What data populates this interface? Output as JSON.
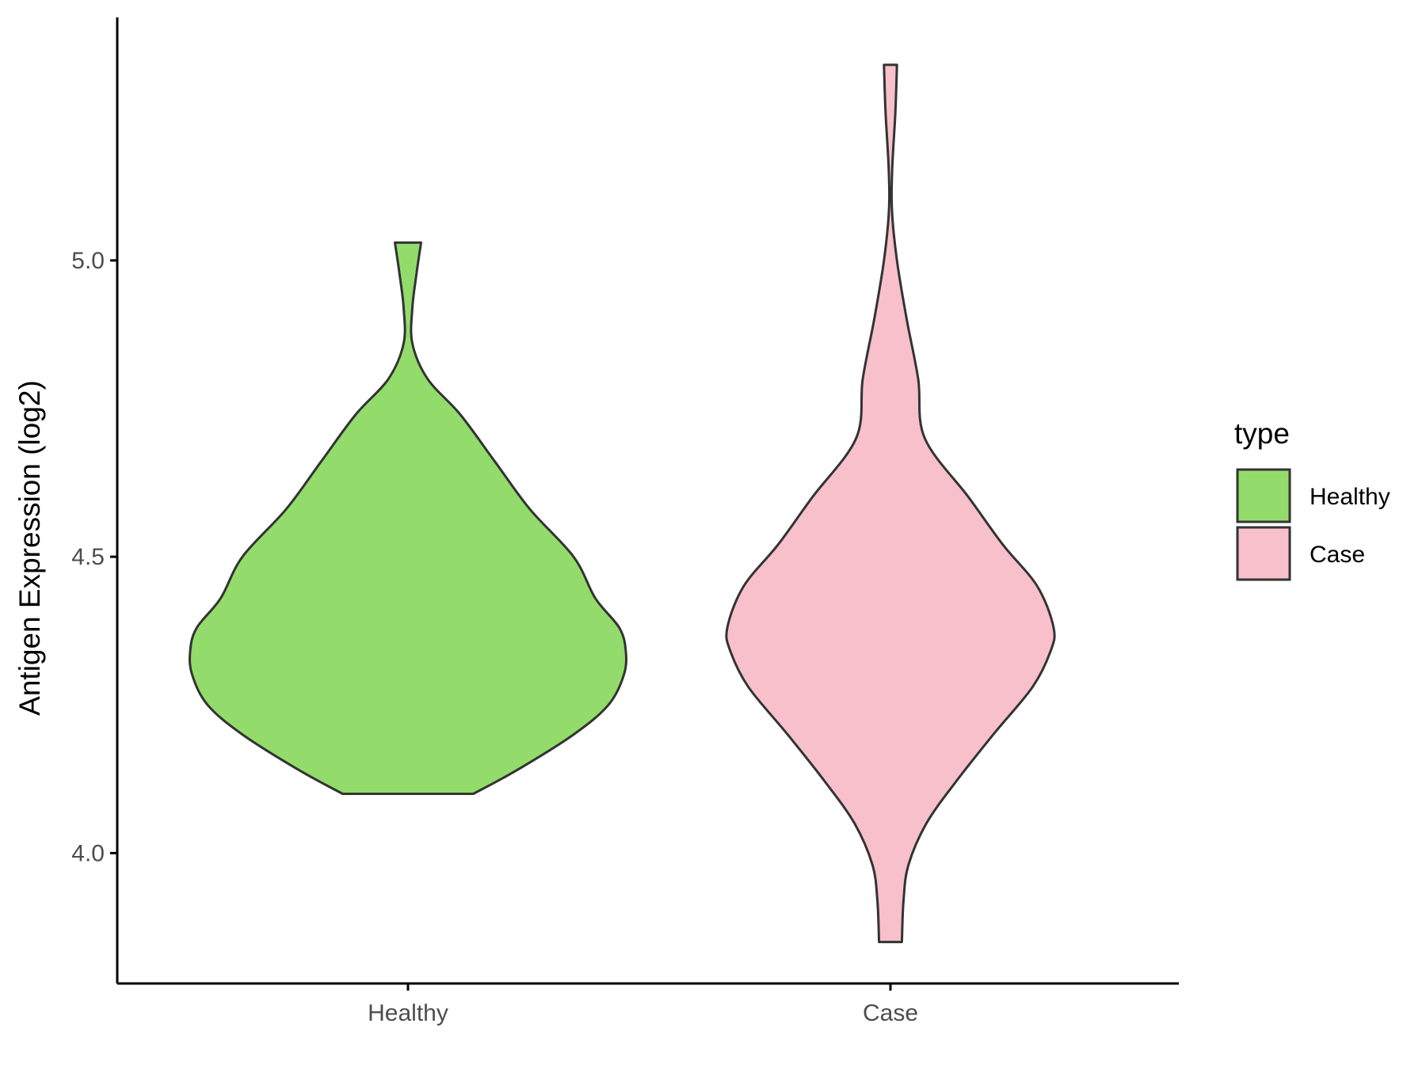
{
  "chart_data": {
    "type": "violin",
    "title": "",
    "xlabel": "",
    "ylabel": "Antigen Expression (log2)",
    "categories": [
      "Healthy",
      "Case"
    ],
    "ylim": [
      3.78,
      5.41
    ],
    "yticks": [
      4.0,
      4.5,
      5.0
    ],
    "ytick_labels": [
      "4.0",
      "4.5",
      "5.0"
    ],
    "grid": false,
    "legend": {
      "title": "type",
      "position": "right",
      "entries": [
        {
          "label": "Healthy",
          "color": "#93dc6b"
        },
        {
          "label": "Case",
          "color": "#f7c0cb"
        }
      ]
    },
    "series": [
      {
        "category": "Healthy",
        "color": "#93dc6b",
        "min": 4.1,
        "max": 5.03,
        "density_profile": [
          {
            "y": 4.1,
            "w": 0.3
          },
          {
            "y": 4.14,
            "w": 0.5
          },
          {
            "y": 4.2,
            "w": 0.76
          },
          {
            "y": 4.25,
            "w": 0.92
          },
          {
            "y": 4.3,
            "w": 0.99
          },
          {
            "y": 4.34,
            "w": 1.0
          },
          {
            "y": 4.38,
            "w": 0.97
          },
          {
            "y": 4.43,
            "w": 0.86
          },
          {
            "y": 4.5,
            "w": 0.76
          },
          {
            "y": 4.58,
            "w": 0.56
          },
          {
            "y": 4.66,
            "w": 0.4
          },
          {
            "y": 4.74,
            "w": 0.24
          },
          {
            "y": 4.8,
            "w": 0.09
          },
          {
            "y": 4.86,
            "w": 0.02
          },
          {
            "y": 4.92,
            "w": 0.02
          },
          {
            "y": 4.98,
            "w": 0.04
          },
          {
            "y": 5.03,
            "w": 0.06
          }
        ]
      },
      {
        "category": "Case",
        "color": "#f7c0cb",
        "min": 3.85,
        "max": 5.33,
        "density_profile": [
          {
            "y": 3.85,
            "w": 0.07
          },
          {
            "y": 3.92,
            "w": 0.08
          },
          {
            "y": 3.98,
            "w": 0.11
          },
          {
            "y": 4.05,
            "w": 0.22
          },
          {
            "y": 4.12,
            "w": 0.4
          },
          {
            "y": 4.2,
            "w": 0.63
          },
          {
            "y": 4.28,
            "w": 0.87
          },
          {
            "y": 4.34,
            "w": 0.98
          },
          {
            "y": 4.38,
            "w": 1.0
          },
          {
            "y": 4.45,
            "w": 0.9
          },
          {
            "y": 4.52,
            "w": 0.69
          },
          {
            "y": 4.6,
            "w": 0.48
          },
          {
            "y": 4.7,
            "w": 0.21
          },
          {
            "y": 4.8,
            "w": 0.17
          },
          {
            "y": 4.9,
            "w": 0.1
          },
          {
            "y": 5.0,
            "w": 0.04
          },
          {
            "y": 5.08,
            "w": 0.01
          },
          {
            "y": 5.15,
            "w": 0.01
          },
          {
            "y": 5.25,
            "w": 0.03
          },
          {
            "y": 5.33,
            "w": 0.04
          }
        ]
      }
    ]
  }
}
